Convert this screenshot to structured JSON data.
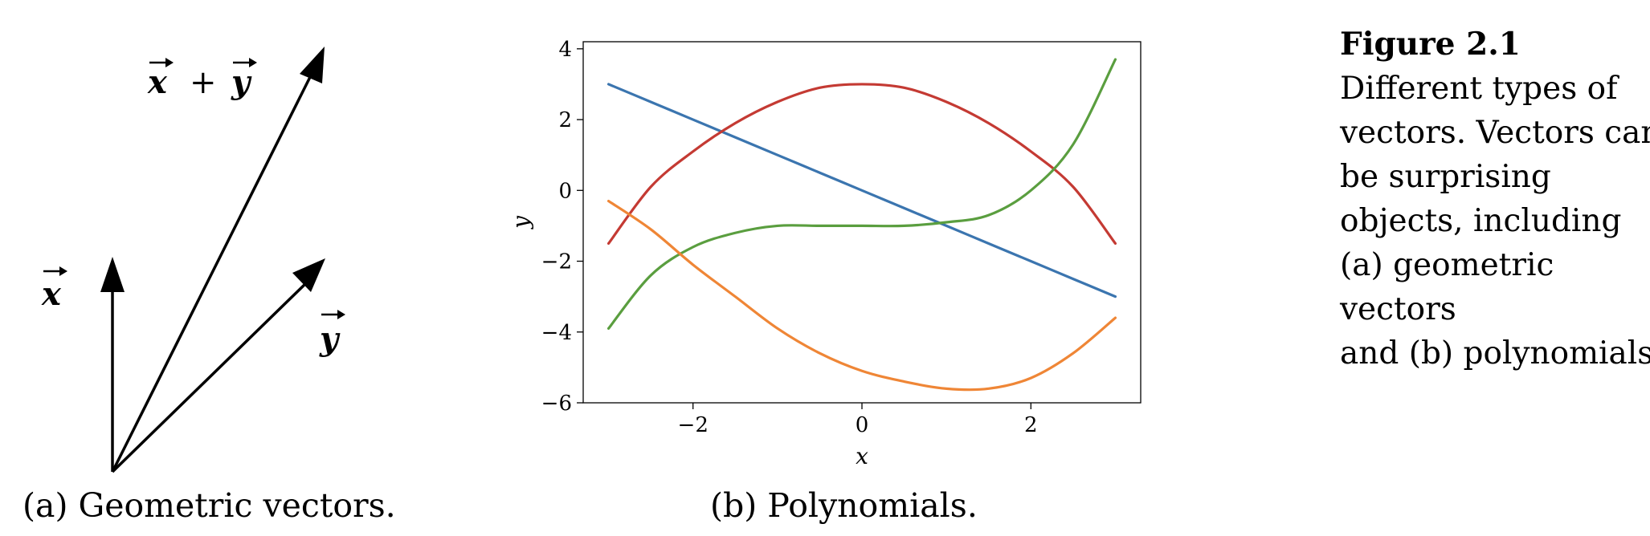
{
  "panel_a": {
    "labels": {
      "x": "x",
      "y": "y",
      "sum": "x + y",
      "sum_x": "x",
      "sum_plus": "+",
      "sum_y": "y"
    },
    "caption": "(a) Geometric vectors."
  },
  "panel_b": {
    "caption": "(b) Polynomials."
  },
  "side_caption": {
    "label": "Figure 2.1",
    "lines": [
      "Different types of",
      "vectors. Vectors can",
      "be surprising",
      "objects, including",
      "(a) geometric",
      "vectors",
      "and (b) polynomials."
    ]
  },
  "chart_data": {
    "type": "line",
    "title": "",
    "xlabel": "x",
    "ylabel": "y",
    "xlim": [
      -3.3,
      3.3
    ],
    "ylim": [
      -6.0,
      4.2
    ],
    "xticks": [
      -2,
      0,
      2
    ],
    "yticks": [
      4,
      2,
      0,
      -2,
      -4,
      -6
    ],
    "grid": false,
    "x": [
      -3.0,
      -2.5,
      -2.0,
      -1.5,
      -1.0,
      -0.5,
      0.0,
      0.5,
      1.0,
      1.5,
      2.0,
      2.5,
      3.0
    ],
    "series": [
      {
        "color": "#3b75af",
        "values": [
          3.0,
          2.5,
          2.0,
          1.5,
          1.0,
          0.5,
          0.0,
          -0.5,
          -1.0,
          -1.5,
          -2.0,
          -2.5,
          -3.0
        ]
      },
      {
        "color": "#c43a33",
        "values": [
          -1.5,
          0.1,
          1.1,
          1.9,
          2.5,
          2.9,
          3.0,
          2.9,
          2.5,
          1.9,
          1.1,
          0.1,
          -1.5
        ]
      },
      {
        "color": "#5a9e3f",
        "values": [
          -3.9,
          -2.4,
          -1.6,
          -1.2,
          -1.0,
          -1.0,
          -1.0,
          -1.0,
          -0.9,
          -0.7,
          0.0,
          1.3,
          3.7
        ]
      },
      {
        "color": "#ef8636",
        "values": [
          -0.3,
          -1.1,
          -2.1,
          -3.0,
          -3.9,
          -4.6,
          -5.1,
          -5.4,
          -5.6,
          -5.6,
          -5.3,
          -4.6,
          -3.6
        ]
      }
    ]
  }
}
